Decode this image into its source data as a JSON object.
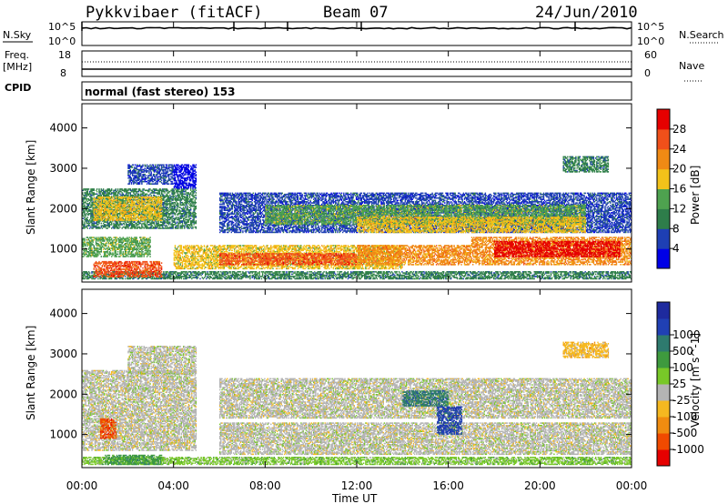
{
  "header": {
    "station": "Pykkvibaer (fitACF)",
    "beam": "Beam 07",
    "date": "24/Jun/2010"
  },
  "strip_panels": {
    "nsky_label": "N.Sky",
    "nsky_ticks": [
      "10^5",
      "10^0"
    ],
    "nsearch_label": "N.Search",
    "nsearch_ticks": [
      "10^5",
      "10^0"
    ],
    "freq_label": "Freq.",
    "freq_unit": "[MHz]",
    "freq_ticks": [
      "18",
      "8"
    ],
    "nave_label": "Nave",
    "nave_ticks": [
      "60",
      "0"
    ],
    "cpid_label": "CPID",
    "cpid_text": "normal (fast stereo) 153"
  },
  "colors": {
    "power": [
      "#0000e6",
      "#1e3fb4",
      "#2e7d4a",
      "#4ea24f",
      "#f2c21a",
      "#f08a14",
      "#f0501a",
      "#e60000"
    ],
    "velocity": [
      "#e60000",
      "#f04a00",
      "#f08c10",
      "#f5b820",
      "#b4b4b4",
      "#78c828",
      "#3e9a3e",
      "#2e7a6e",
      "#2040b4",
      "#1e2a9e"
    ]
  },
  "chart_data": [
    {
      "type": "heatmap",
      "name": "power",
      "ylabel": "Slant Range [km]",
      "yticks": [
        1000,
        2000,
        3000,
        4000
      ],
      "ylim": [
        180,
        4600
      ],
      "xlim": [
        0,
        24
      ],
      "colorbar_label": "Power [dB]",
      "colorbar_ticks": [
        "4",
        "8",
        "12",
        "16",
        "20",
        "24",
        "28"
      ],
      "bands": [
        {
          "x0": 0.0,
          "x1": 24.0,
          "y0": 250,
          "y1": 450,
          "level": 2
        },
        {
          "x0": 0.5,
          "x1": 3.5,
          "y0": 300,
          "y1": 700,
          "level": 6
        },
        {
          "x0": 4.0,
          "x1": 14.0,
          "y0": 500,
          "y1": 1100,
          "level": 4
        },
        {
          "x0": 6.0,
          "x1": 12.0,
          "y0": 600,
          "y1": 900,
          "level": 6
        },
        {
          "x0": 12.0,
          "x1": 17.0,
          "y0": 600,
          "y1": 1100,
          "level": 5
        },
        {
          "x0": 17.0,
          "x1": 24.0,
          "y0": 600,
          "y1": 1300,
          "level": 5
        },
        {
          "x0": 18.0,
          "x1": 23.5,
          "y0": 800,
          "y1": 1200,
          "level": 7
        },
        {
          "x0": 0.0,
          "x1": 3.0,
          "y0": 800,
          "y1": 1300,
          "level": 3
        },
        {
          "x0": 0.0,
          "x1": 5.0,
          "y0": 1500,
          "y1": 2500,
          "level": 2
        },
        {
          "x0": 0.5,
          "x1": 3.5,
          "y0": 1700,
          "y1": 2300,
          "level": 4
        },
        {
          "x0": 2.0,
          "x1": 4.0,
          "y0": 2600,
          "y1": 3100,
          "level": 1
        },
        {
          "x0": 4.0,
          "x1": 5.0,
          "y0": 2500,
          "y1": 3100,
          "level": 0
        },
        {
          "x0": 6.0,
          "x1": 24.0,
          "y0": 1400,
          "y1": 2400,
          "level": 1
        },
        {
          "x0": 8.0,
          "x1": 22.0,
          "y0": 1600,
          "y1": 2100,
          "level": 3
        },
        {
          "x0": 12.0,
          "x1": 22.0,
          "y0": 1400,
          "y1": 1800,
          "level": 4
        },
        {
          "x0": 21.0,
          "x1": 23.0,
          "y0": 2900,
          "y1": 3300,
          "level": 2
        }
      ]
    },
    {
      "type": "heatmap",
      "name": "velocity",
      "ylabel": "Slant Range [km]",
      "yticks": [
        1000,
        2000,
        3000,
        4000
      ],
      "ylim": [
        180,
        4600
      ],
      "xlim": [
        0,
        24
      ],
      "xlabel": "Time UT",
      "xticks": [
        "00:00",
        "04:00",
        "08:00",
        "12:00",
        "16:00",
        "20:00",
        "00:00"
      ],
      "colorbar_label": "Velocity [m s^-1]",
      "colorbar_ticks": [
        "-1000",
        "-500",
        "-100",
        "-25",
        "25",
        "100",
        "500",
        "1000"
      ],
      "bands": [
        {
          "x0": 0.0,
          "x1": 24.0,
          "y0": 250,
          "y1": 450,
          "level": 5
        },
        {
          "x0": 0.0,
          "x1": 5.0,
          "y0": 600,
          "y1": 2600,
          "level": 4
        },
        {
          "x0": 2.0,
          "x1": 5.0,
          "y0": 2500,
          "y1": 3200,
          "level": 4
        },
        {
          "x0": 6.0,
          "x1": 24.0,
          "y0": 500,
          "y1": 1300,
          "level": 4
        },
        {
          "x0": 6.0,
          "x1": 24.0,
          "y0": 1400,
          "y1": 2400,
          "level": 4
        },
        {
          "x0": 0.8,
          "x1": 1.5,
          "y0": 900,
          "y1": 1400,
          "level": 1
        },
        {
          "x0": 15.5,
          "x1": 16.6,
          "y0": 1000,
          "y1": 1700,
          "level": 8
        },
        {
          "x0": 14.0,
          "x1": 16.0,
          "y0": 1700,
          "y1": 2100,
          "level": 7
        },
        {
          "x0": 21.0,
          "x1": 23.0,
          "y0": 2900,
          "y1": 3300,
          "level": 3
        },
        {
          "x0": 1.0,
          "x1": 3.5,
          "y0": 250,
          "y1": 500,
          "level": 6
        }
      ]
    }
  ]
}
